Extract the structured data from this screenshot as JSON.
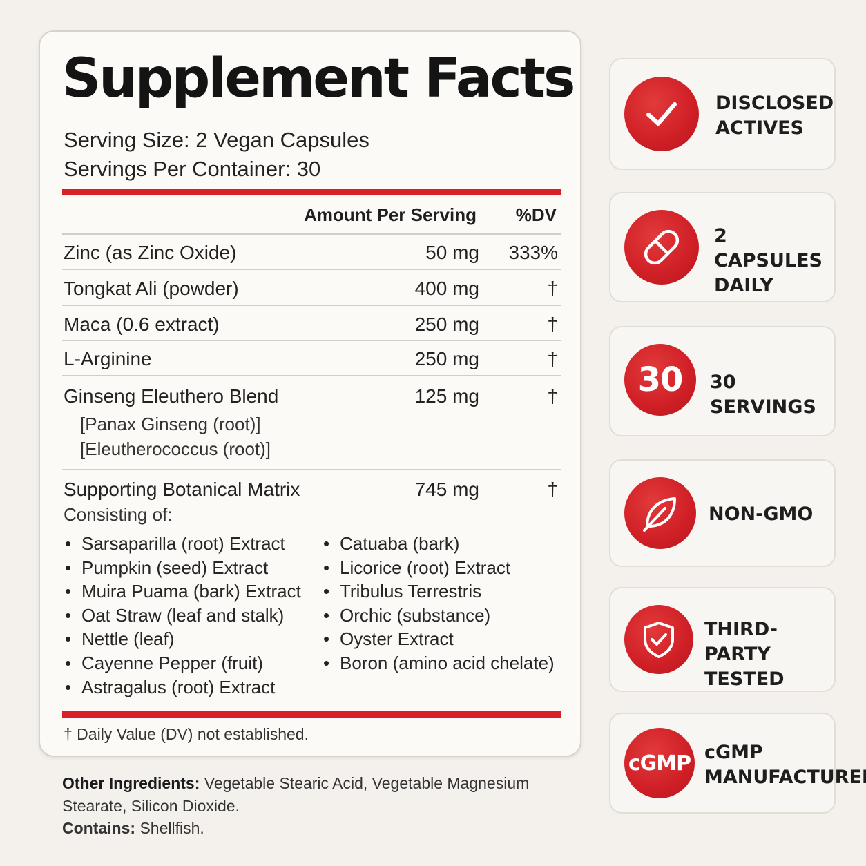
{
  "facts": {
    "title": "Supplement Facts",
    "serving_size": "Serving Size: 2 Vegan Capsules",
    "servings_per_container": "Servings Per Container: 30",
    "header_amount": "Amount Per Serving",
    "header_dv": "%DV",
    "rows": [
      {
        "name": "Zinc (as Zinc Oxide)",
        "amount": "50 mg",
        "dv": "333%"
      },
      {
        "name": "Tongkat Ali (powder)",
        "amount": "400 mg",
        "dv": "†"
      },
      {
        "name": "Maca (0.6 extract)",
        "amount": "250 mg",
        "dv": "†"
      },
      {
        "name": "L-Arginine",
        "amount": "250 mg",
        "dv": "†"
      },
      {
        "name": "Ginseng Eleuthero Blend",
        "amount": "125 mg",
        "dv": "†",
        "sub": [
          "[Panax Ginseng (root)]",
          "[Eleutherococcus (root)]"
        ]
      },
      {
        "name": "Supporting Botanical Matrix",
        "amount": "745 mg",
        "dv": "†"
      }
    ],
    "consisting_of": "Consisting of:",
    "matrix_left": [
      "Sarsaparilla (root) Extract",
      "Pumpkin (seed) Extract",
      "Muira Puama (bark) Extract",
      "Oat Straw (leaf and stalk)",
      "Nettle (leaf)",
      "Cayenne Pepper (fruit)",
      "Astragalus (root) Extract"
    ],
    "matrix_right": [
      "Catuaba (bark)",
      "Licorice (root) Extract",
      "Tribulus Terrestris",
      "Orchic (substance)",
      "Oyster Extract",
      "Boron (amino acid chelate)"
    ],
    "footnote": "† Daily Value (DV) not established."
  },
  "other_ingredients": {
    "label": "Other Ingredients:",
    "text": " Vegetable Stearic Acid, Vegetable Magnesium Stearate, Silicon Dioxide."
  },
  "contains": {
    "label": "Contains:",
    "text": " Shellfish."
  },
  "badges": [
    {
      "icon": "checkmark-icon",
      "label": "DISCLOSED\nACTIVES"
    },
    {
      "icon": "capsule-icon",
      "label": "2 CAPSULES\nDAILY"
    },
    {
      "icon": "number-30-icon",
      "text": "30",
      "label": "30 SERVINGS"
    },
    {
      "icon": "leaf-icon",
      "label": "NON-GMO"
    },
    {
      "icon": "shield-check-icon",
      "label": "THIRD-PARTY\nTESTED"
    },
    {
      "icon": "cgmp-seal-icon",
      "text": "cGMP",
      "label": "cGMP\nMANUFACTURED"
    }
  ],
  "colors": {
    "accent": "#d82027",
    "background": "#f4f1ec",
    "panel": "#fbfaf7"
  }
}
